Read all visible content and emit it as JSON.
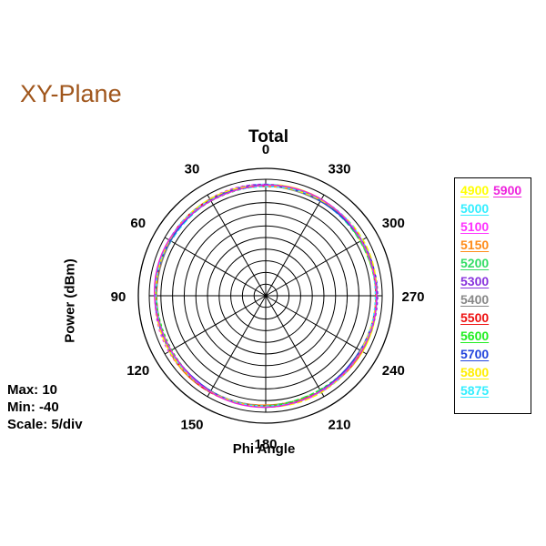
{
  "page_title": "XY-Plane",
  "chart_data": {
    "type": "polar",
    "title": "Total",
    "xlabel": "Phi Angle",
    "ylabel": "Power  (dBm)",
    "radial_max": 10,
    "radial_min": -40,
    "radial_step": 5,
    "angle_labels": [
      "0",
      "330",
      "300",
      "270",
      "240",
      "210",
      "180",
      "150",
      "120",
      "90",
      "60",
      "30"
    ],
    "series": [
      {
        "name": "4900",
        "color": "#ffff00",
        "value": 7.5
      },
      {
        "name": "5000",
        "color": "#33eeff",
        "value": 7.3
      },
      {
        "name": "5100",
        "color": "#ff33ff",
        "value": 7.6
      },
      {
        "name": "5150",
        "color": "#ff8c1a",
        "value": 7.4
      },
      {
        "name": "5200",
        "color": "#33dd66",
        "value": 7.2
      },
      {
        "name": "5300",
        "color": "#8833dd",
        "value": 7.5
      },
      {
        "name": "5400",
        "color": "#888888",
        "value": 7.3
      },
      {
        "name": "5500",
        "color": "#ee1111",
        "value": 7.4
      },
      {
        "name": "5600",
        "color": "#22ee22",
        "value": 7.1
      },
      {
        "name": "5700",
        "color": "#2244dd",
        "value": 7.3
      },
      {
        "name": "5800",
        "color": "#ffee00",
        "value": 7.6
      },
      {
        "name": "5875",
        "color": "#33eeff",
        "value": 7.4
      },
      {
        "name": "5900",
        "color": "#ee22dd",
        "value": 7.5
      }
    ]
  },
  "stats": {
    "max": "Max: 10",
    "min": "Min: -40",
    "scale": "Scale: 5/div"
  }
}
